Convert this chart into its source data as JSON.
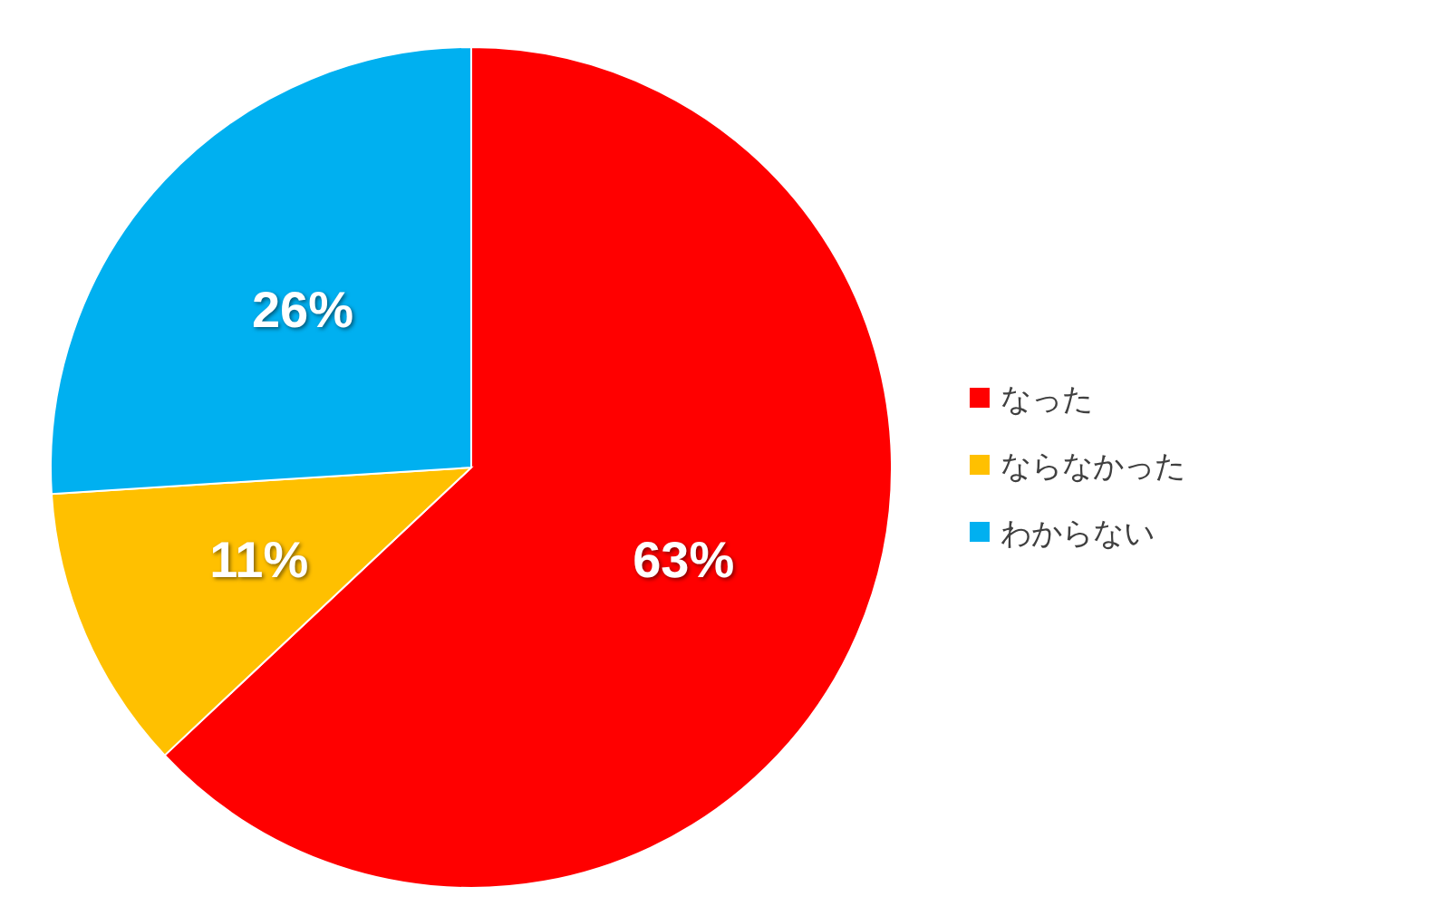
{
  "chart_data": {
    "type": "pie",
    "categories": [
      "なった",
      "ならなかった",
      "わからない"
    ],
    "values": [
      63,
      11,
      26
    ],
    "colors": [
      "#ff0000",
      "#ffc000",
      "#00b0f0"
    ],
    "value_labels": [
      "63%",
      "11%",
      "26%"
    ],
    "legend": "right"
  }
}
